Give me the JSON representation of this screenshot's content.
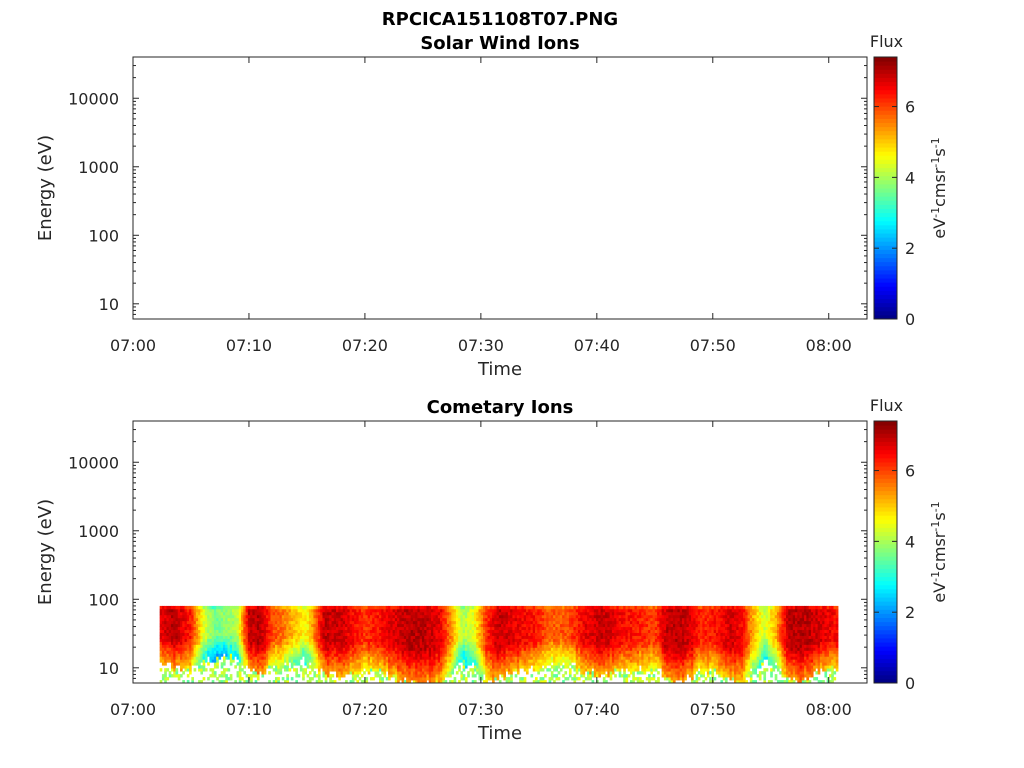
{
  "figure_title": "RPCICA151108T07.PNG",
  "chart_data": [
    {
      "type": "heatmap",
      "title": "Solar Wind Ions",
      "xlabel": "Time",
      "ylabel": "Energy (eV)",
      "x_ticks": [
        "07:00",
        "07:10",
        "07:20",
        "07:30",
        "07:40",
        "07:50",
        "08:00"
      ],
      "x_tick_minutes": [
        0,
        10,
        20,
        30,
        40,
        50,
        60
      ],
      "xlim_minutes": [
        0,
        63.3
      ],
      "y_scale": "log",
      "ylim": [
        6,
        40000
      ],
      "y_ticks": [
        "10",
        "100",
        "1000",
        "10000"
      ],
      "y_tick_values": [
        10,
        100,
        1000,
        10000
      ],
      "colorbar": {
        "title": "Flux",
        "unit": "eV-1cm-2sr-1s-1",
        "ticks": [
          "0",
          "2",
          "4",
          "6"
        ],
        "tick_values": [
          0,
          2,
          4,
          6
        ],
        "range": [
          0,
          7.4
        ],
        "colormap": "jet"
      },
      "data_present": false
    },
    {
      "type": "heatmap",
      "title": "Cometary Ions",
      "xlabel": "Time",
      "ylabel": "Energy (eV)",
      "x_ticks": [
        "07:00",
        "07:10",
        "07:20",
        "07:30",
        "07:40",
        "07:50",
        "08:00"
      ],
      "x_tick_minutes": [
        0,
        10,
        20,
        30,
        40,
        50,
        60
      ],
      "xlim_minutes": [
        0,
        63.3
      ],
      "y_scale": "log",
      "ylim": [
        6,
        40000
      ],
      "y_ticks": [
        "10",
        "100",
        "1000",
        "10000"
      ],
      "y_tick_values": [
        10,
        100,
        1000,
        10000
      ],
      "colorbar": {
        "title": "Flux",
        "unit": "eV-1cm-2sr-1s-1",
        "ticks": [
          "0",
          "2",
          "4",
          "6"
        ],
        "tick_values": [
          0,
          2,
          4,
          6
        ],
        "range": [
          0,
          7.4
        ],
        "colormap": "jet"
      },
      "data_present": true,
      "data_time_range_minutes": [
        2.3,
        60.8
      ],
      "data_energy_range_eV": [
        6,
        80
      ],
      "time_profile": {
        "minutes": [
          2.3,
          3.5,
          5.0,
          6.0,
          7.0,
          8.0,
          9.0,
          10.0,
          11.0,
          12.0,
          13.0,
          14.0,
          15.0,
          16.5,
          18.0,
          20.0,
          22.0,
          24.0,
          25.5,
          26.5,
          27.5,
          28.5,
          29.5,
          30.5,
          31.5,
          33.0,
          34.5,
          36.0,
          37.5,
          39.0,
          40.5,
          42.0,
          43.5,
          45.0,
          46.0,
          47.0,
          48.0,
          49.0,
          50.5,
          51.5,
          52.5,
          53.5,
          54.5,
          55.5,
          56.5,
          57.5,
          58.5,
          59.5,
          60.8
        ],
        "peak_flux": [
          6.6,
          7.0,
          6.3,
          4.5,
          3.6,
          3.9,
          4.1,
          6.9,
          7.0,
          6.0,
          5.6,
          5.0,
          4.6,
          6.9,
          6.8,
          6.1,
          6.6,
          7.0,
          6.9,
          6.6,
          5.4,
          4.0,
          4.6,
          6.2,
          6.9,
          6.6,
          6.4,
          5.8,
          5.9,
          6.6,
          6.9,
          6.5,
          6.3,
          6.0,
          6.9,
          7.0,
          6.8,
          6.2,
          6.4,
          6.8,
          6.5,
          5.2,
          4.2,
          5.3,
          6.9,
          7.0,
          6.9,
          6.7,
          6.4
        ],
        "lower_energy_eV": [
          12,
          10,
          9,
          12,
          14,
          15,
          14,
          9,
          8,
          10,
          11,
          12,
          13,
          8,
          8,
          9,
          8,
          6,
          6,
          6,
          8,
          12,
          10,
          6,
          7,
          9,
          10,
          11,
          11,
          9,
          8,
          9,
          10,
          10,
          7,
          6,
          7,
          9,
          9,
          7,
          6,
          9,
          12,
          10,
          7,
          6,
          8,
          9,
          10
        ]
      }
    }
  ]
}
